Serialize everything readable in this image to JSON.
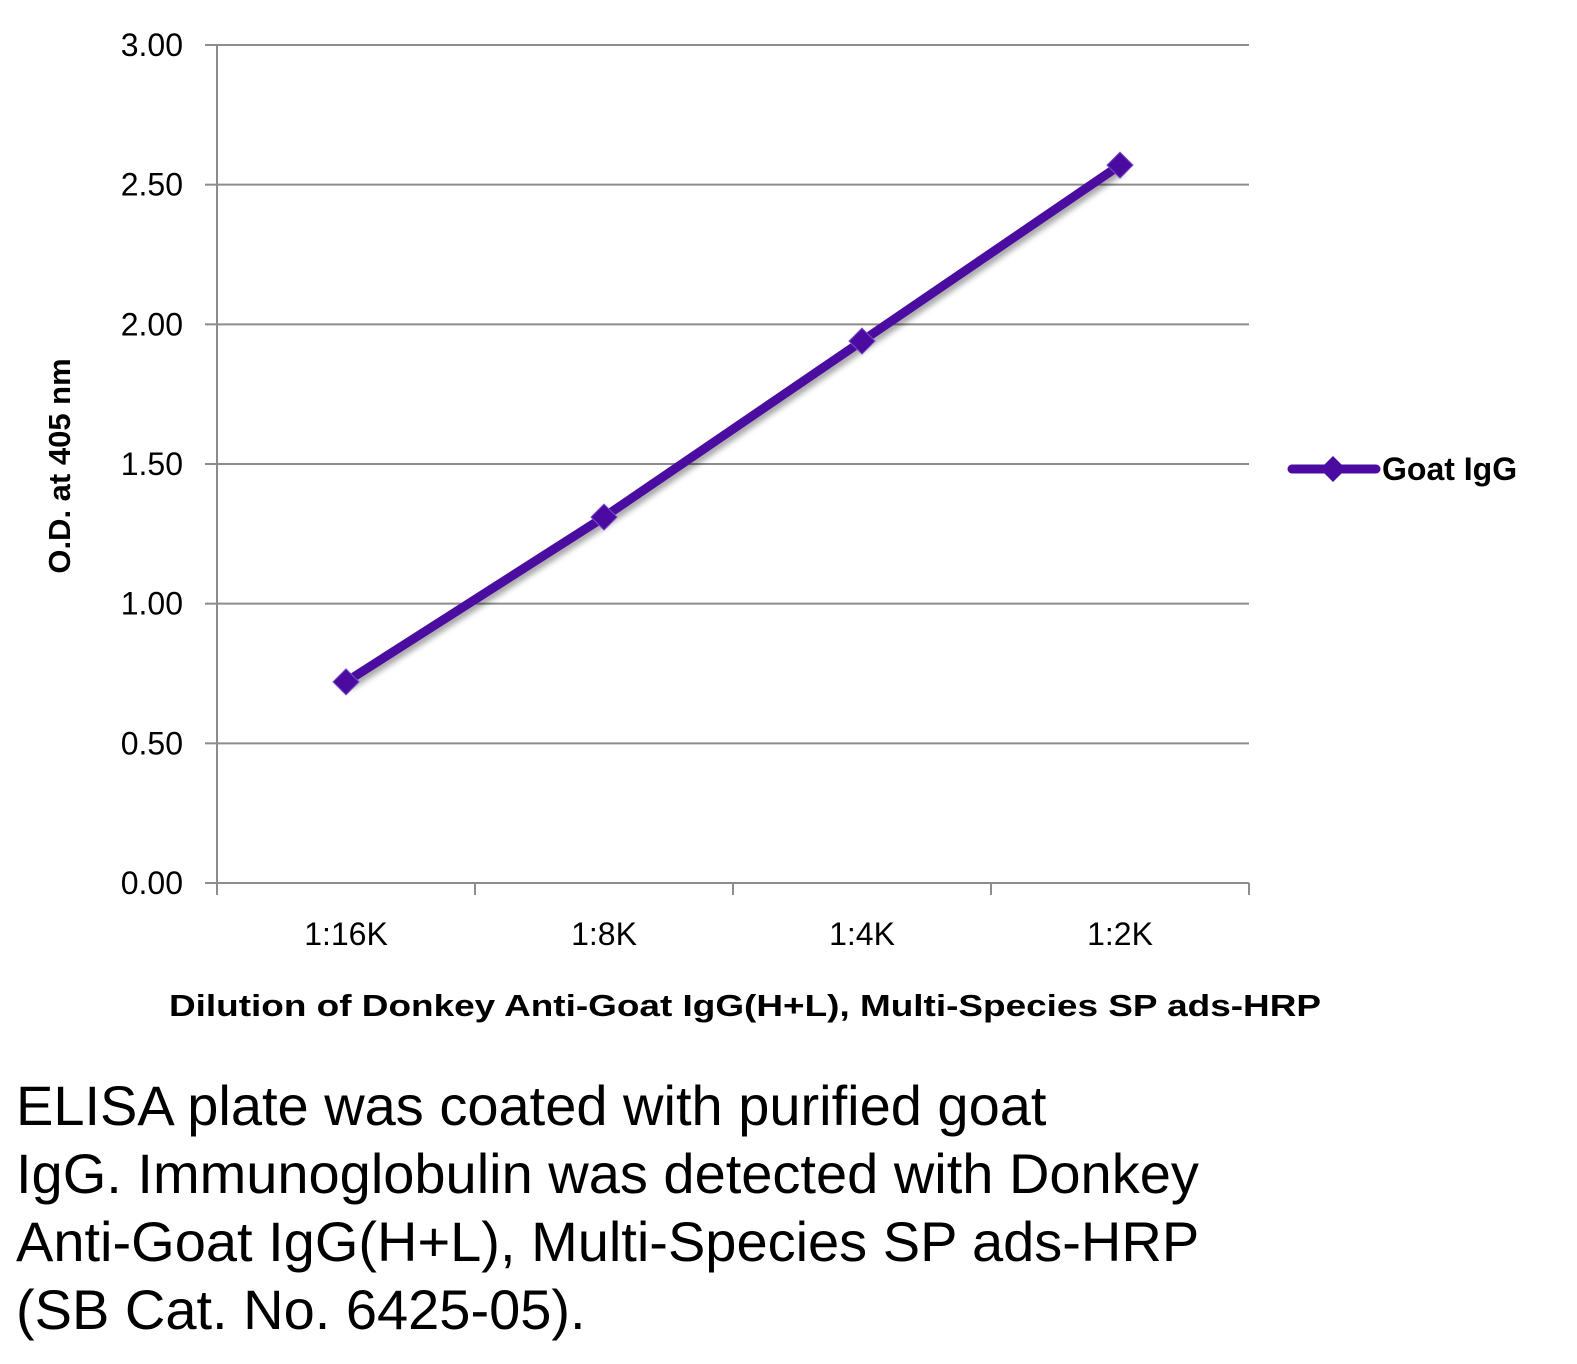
{
  "chart_data": {
    "type": "line",
    "categories": [
      "1:16K",
      "1:8K",
      "1:4K",
      "1:2K"
    ],
    "series": [
      {
        "name": "Goat IgG",
        "values": [
          0.72,
          1.31,
          1.94,
          2.57
        ]
      }
    ],
    "xlabel": "Dilution of Donkey Anti-Goat IgG(H+L), Multi-Species SP ads-HRP",
    "ylabel": "O.D. at 405 nm",
    "ylim": [
      0,
      3
    ],
    "yticks": [
      "0.00",
      "0.50",
      "1.00",
      "1.50",
      "2.00",
      "2.50",
      "3.00"
    ],
    "grid": true,
    "legend": "right",
    "line_color": "#4B0BA0"
  },
  "caption": {
    "lines": [
      "ELISA plate was coated with purified goat",
      "IgG.  Immunoglobulin was detected with Donkey",
      "Anti-Goat IgG(H+L), Multi-Species SP ads-HRP",
      "(SB Cat. No. 6425-05)."
    ]
  }
}
